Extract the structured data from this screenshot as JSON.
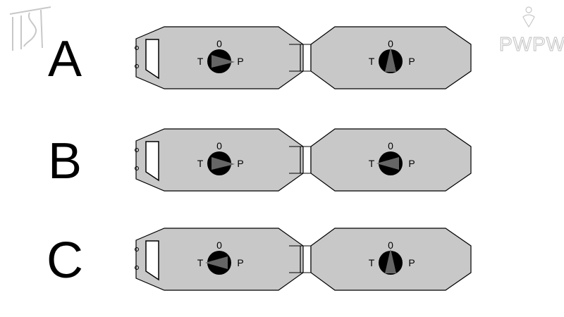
{
  "logos": {
    "left_mark": "ITS",
    "right_brand": "PWPW"
  },
  "colors": {
    "body_fill": "#c8c8c8",
    "outline": "#000000",
    "knob": "#000000",
    "pointer": "#666666",
    "logo": "#c8c8c8"
  },
  "switch_positions_legend": [
    "0",
    "T",
    "P"
  ],
  "rows": [
    {
      "label": "A",
      "cars": [
        {
          "switch": {
            "top": "0",
            "left": "T",
            "right": "P",
            "pointer": "P"
          }
        },
        {
          "switch": {
            "top": "0",
            "left": "T",
            "right": "P",
            "pointer": "0"
          }
        }
      ]
    },
    {
      "label": "B",
      "cars": [
        {
          "switch": {
            "top": "0",
            "left": "T",
            "right": "P",
            "pointer": "P"
          }
        },
        {
          "switch": {
            "top": "0",
            "left": "T",
            "right": "P",
            "pointer": "T"
          }
        }
      ]
    },
    {
      "label": "C",
      "cars": [
        {
          "switch": {
            "top": "0",
            "left": "T",
            "right": "P",
            "pointer": "T"
          }
        },
        {
          "switch": {
            "top": "0",
            "left": "T",
            "right": "P",
            "pointer": "0"
          }
        }
      ]
    }
  ]
}
